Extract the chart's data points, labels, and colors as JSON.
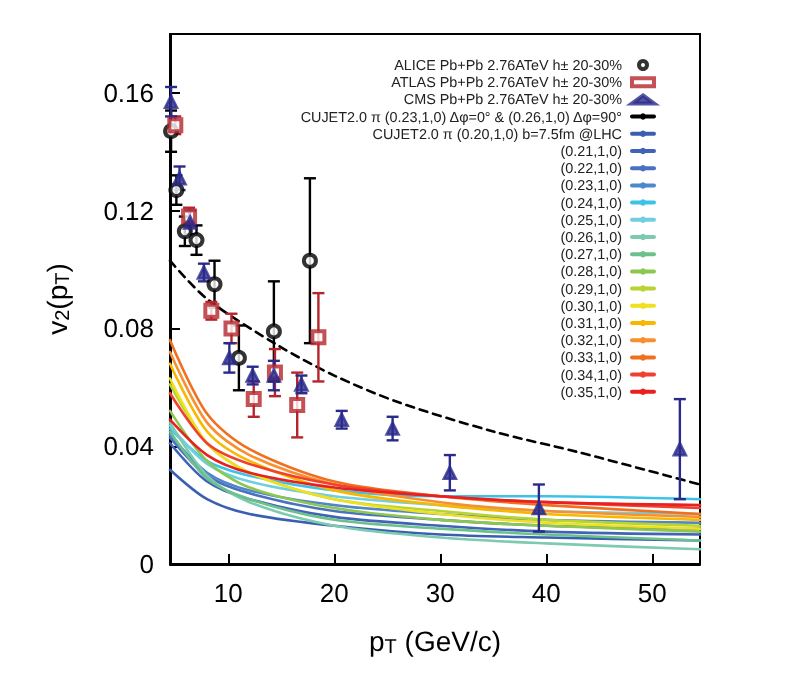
{
  "chart_data": {
    "type": "line",
    "xlabel": "p$_{T}$ (GeV/c)",
    "ylabel": "v$_{2}$(p$_{T}$)",
    "xlim": [
      4.5,
      54.5
    ],
    "xticks": [
      10,
      20,
      30,
      40,
      50
    ],
    "ylim": [
      0,
      0.18
    ],
    "yticks": [
      0,
      0.04,
      0.08,
      0.12,
      0.16
    ],
    "legend": "top right",
    "series": [
      {
        "name": "ALICE Pb+Pb 2.76ATeV h± 20-30%",
        "type": "scatter",
        "marker": "circle",
        "color": "#000000",
        "x": [
          4.6,
          5.1,
          5.9,
          7.0,
          8.7,
          11.0,
          14.3,
          17.7
        ],
        "values": [
          0.147,
          0.127,
          0.113,
          0.11,
          0.095,
          0.07,
          0.079,
          0.103
        ],
        "errors": [
          0.007,
          0.005,
          0.005,
          0.005,
          0.008,
          0.011,
          0.017,
          0.028
        ]
      },
      {
        "name": "ATLAS Pb+Pb 2.76ATeV h± 20-30%",
        "type": "scatter",
        "marker": "square",
        "color": "#b5262c",
        "x": [
          5.0,
          6.3,
          8.4,
          10.3,
          12.4,
          14.4,
          16.5,
          18.5
        ],
        "values": [
          0.149,
          0.118,
          0.086,
          0.08,
          0.056,
          0.065,
          0.054,
          0.077
        ],
        "errors": [
          0.003,
          0.003,
          0.003,
          0.005,
          0.006,
          0.008,
          0.011,
          0.015
        ]
      },
      {
        "name": "CMS Pb+Pb 2.76ATeV h± 20-30%",
        "type": "scatter",
        "marker": "triangle",
        "color": "#2a2a8c",
        "x": [
          4.6,
          5.4,
          6.4,
          7.7,
          10.1,
          12.3,
          14.3,
          16.9,
          20.7,
          25.5,
          30.9,
          39.3,
          52.6
        ],
        "values": [
          0.157,
          0.131,
          0.116,
          0.099,
          0.07,
          0.064,
          0.064,
          0.061,
          0.049,
          0.046,
          0.031,
          0.019,
          0.039
        ],
        "errors": [
          0.005,
          0.004,
          0.004,
          0.003,
          0.005,
          0.003,
          0.005,
          0.003,
          0.003,
          0.004,
          0.006,
          0.008,
          0.017
        ]
      },
      {
        "name": "CUJET2.0 π (0.23,1,0) Δφ=0° & (0.26,1,0) Δφ=90°",
        "marker": "none",
        "line_style": "dashed",
        "color": "#000000",
        "x": [
          4.5,
          8,
          14.8,
          20,
          26,
          35,
          43,
          54.5
        ],
        "values": [
          0.103,
          0.09,
          0.074,
          0.064,
          0.055,
          0.045,
          0.038,
          0.027
        ]
      },
      {
        "name": "CUJET2.0 π (0.20,1,0) b=7.5fm @LHC",
        "marker": "none",
        "color": "#3a5fb0",
        "x": [
          4.5,
          8,
          12,
          20,
          30,
          40,
          54.5
        ],
        "values": [
          0.032,
          0.022,
          0.017,
          0.013,
          0.01,
          0.009,
          0.008
        ]
      },
      {
        "name": "(0.21,1,0)",
        "marker": "none",
        "color": "#4063b8",
        "x": [
          4.5,
          8,
          12,
          20,
          30,
          40,
          54.5
        ],
        "values": [
          0.041,
          0.028,
          0.022,
          0.016,
          0.013,
          0.011,
          0.01
        ]
      },
      {
        "name": "(0.22,1,0)",
        "marker": "none",
        "color": "#4a70c0",
        "x": [
          4.5,
          8,
          12,
          20,
          30,
          40,
          54.5
        ],
        "values": [
          0.043,
          0.03,
          0.024,
          0.018,
          0.015,
          0.013,
          0.012
        ]
      },
      {
        "name": "(0.23,1,0)",
        "marker": "none",
        "color": "#4f86cc",
        "x": [
          4.5,
          8,
          12,
          20,
          30,
          40,
          54.5
        ],
        "values": [
          0.044,
          0.031,
          0.025,
          0.02,
          0.017,
          0.015,
          0.014
        ]
      },
      {
        "name": "(0.24,1,0)",
        "marker": "none",
        "color": "#3ec3e8",
        "x": [
          4.5,
          8,
          12,
          20,
          30,
          40,
          54.5
        ],
        "values": [
          0.046,
          0.035,
          0.03,
          0.025,
          0.023,
          0.023,
          0.022
        ]
      },
      {
        "name": "(0.25,1,0)",
        "marker": "none",
        "color": "#6fcfe0",
        "x": [
          4.5,
          8,
          12,
          20,
          30,
          40,
          54.5
        ],
        "values": [
          0.047,
          0.034,
          0.028,
          0.023,
          0.02,
          0.018,
          0.017
        ]
      },
      {
        "name": "(0.26,1,0)",
        "marker": "none",
        "color": "#7ccab0",
        "x": [
          4.5,
          8,
          12,
          20,
          30,
          40,
          54.5
        ],
        "values": [
          0.048,
          0.03,
          0.021,
          0.013,
          0.009,
          0.007,
          0.005
        ]
      },
      {
        "name": "(0.27,1,0)",
        "marker": "none",
        "color": "#6cc08a",
        "x": [
          4.5,
          8,
          12,
          20,
          30,
          40,
          54.5
        ],
        "values": [
          0.045,
          0.029,
          0.022,
          0.015,
          0.012,
          0.01,
          0.008
        ]
      },
      {
        "name": "(0.28,1,0)",
        "marker": "none",
        "color": "#8cc850",
        "x": [
          4.5,
          8,
          12,
          20,
          30,
          40,
          54.5
        ],
        "values": [
          0.052,
          0.035,
          0.026,
          0.019,
          0.015,
          0.013,
          0.011
        ]
      },
      {
        "name": "(0.29,1,0)",
        "marker": "none",
        "color": "#b8d430",
        "x": [
          4.5,
          8,
          12,
          20,
          30,
          40,
          54.5
        ],
        "values": [
          0.061,
          0.041,
          0.031,
          0.022,
          0.018,
          0.015,
          0.013
        ]
      },
      {
        "name": "(0.30,1,0)",
        "marker": "none",
        "color": "#f0e020",
        "x": [
          4.5,
          8,
          12,
          20,
          30,
          40,
          54.5
        ],
        "values": [
          0.063,
          0.041,
          0.031,
          0.022,
          0.017,
          0.014,
          0.012
        ]
      },
      {
        "name": "(0.31,1,0)",
        "marker": "none",
        "color": "#f8b800",
        "x": [
          4.5,
          8,
          12,
          20,
          30,
          40,
          54.5
        ],
        "values": [
          0.068,
          0.045,
          0.035,
          0.025,
          0.02,
          0.017,
          0.015
        ]
      },
      {
        "name": "(0.32,1,0)",
        "marker": "none",
        "color": "#f89030",
        "x": [
          4.5,
          8,
          12,
          20,
          30,
          40,
          54.5
        ],
        "values": [
          0.072,
          0.048,
          0.037,
          0.027,
          0.021,
          0.018,
          0.016
        ]
      },
      {
        "name": "(0.33,1,0)",
        "marker": "none",
        "color": "#f07020",
        "x": [
          4.5,
          8,
          12,
          20,
          30,
          40,
          54.5
        ],
        "values": [
          0.076,
          0.051,
          0.039,
          0.028,
          0.023,
          0.02,
          0.017
        ]
      },
      {
        "name": "(0.34,1,0)",
        "marker": "none",
        "color": "#f04030",
        "x": [
          4.5,
          8,
          12,
          20,
          30,
          40,
          54.5
        ],
        "values": [
          0.058,
          0.041,
          0.034,
          0.027,
          0.023,
          0.021,
          0.019
        ]
      },
      {
        "name": "(0.35,1,0)",
        "marker": "none",
        "color": "#e82020",
        "x": [
          4.5,
          8,
          12,
          20,
          30,
          40,
          54.5
        ],
        "values": [
          0.049,
          0.037,
          0.031,
          0.026,
          0.023,
          0.021,
          0.02
        ]
      }
    ]
  }
}
